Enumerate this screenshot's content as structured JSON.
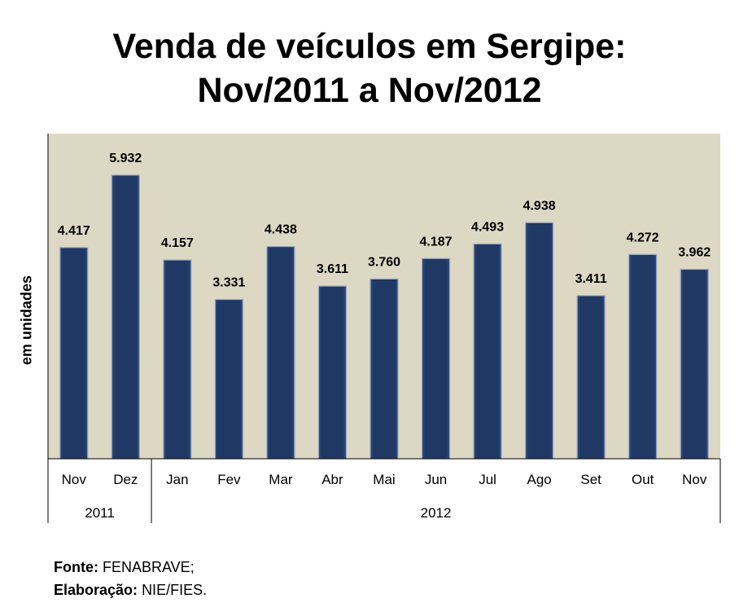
{
  "chart_data": {
    "type": "bar",
    "title": "Venda de veículos em Sergipe:",
    "subtitle": "Nov/2011 a Nov/2012",
    "xlabel": "",
    "ylabel": "em unidades",
    "categories": [
      "Nov",
      "Dez",
      "Jan",
      "Fev",
      "Mar",
      "Abr",
      "Mai",
      "Jun",
      "Jul",
      "Ago",
      "Set",
      "Out",
      "Nov"
    ],
    "values": [
      4417,
      5932,
      4157,
      3331,
      4438,
      3611,
      3760,
      4187,
      4493,
      4938,
      3411,
      4272,
      3962
    ],
    "value_labels": [
      "4.417",
      "5.932",
      "4.157",
      "3.331",
      "4.438",
      "3.611",
      "3.760",
      "4.187",
      "4.493",
      "4.938",
      "3.411",
      "4.272",
      "3.962"
    ],
    "groups": [
      {
        "label": "2011",
        "count": 2
      },
      {
        "label": "2012",
        "count": 11
      }
    ],
    "ylim": [
      0,
      6800
    ],
    "grid": false,
    "legend": "none",
    "colors": {
      "bar": "#1f3864",
      "bar_edge": "#9aa7bf",
      "plot_bg": "#ddd8c4"
    }
  },
  "footer": {
    "source_label": "Fonte:",
    "source_value": "FENABRAVE;",
    "prep_label": "Elaboração:",
    "prep_value": "NIE/FIES."
  }
}
